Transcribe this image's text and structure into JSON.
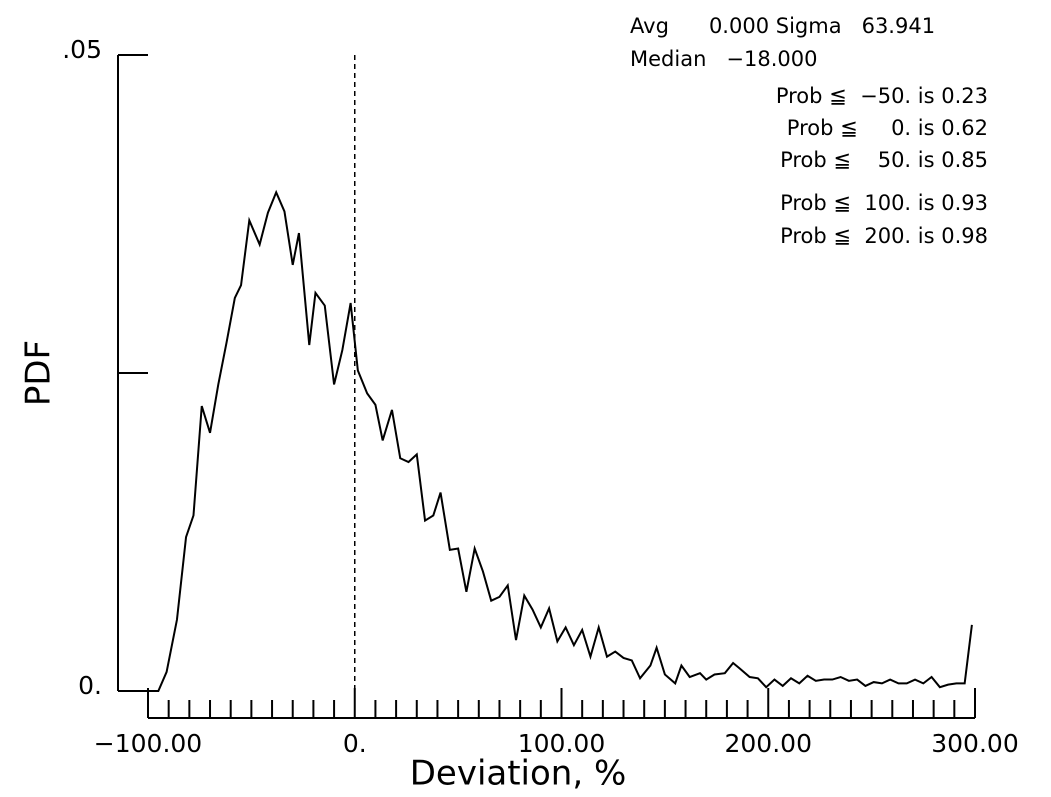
{
  "chart_data": {
    "type": "line",
    "ylabel": "PDF",
    "xlabel": "Deviation, %",
    "annotations": [
      "Avg      0.000 Sigma   63.941",
      "Median   −18.000",
      "Prob ≦  −50. is 0.23",
      "Prob ≦     0. is 0.62",
      "Prob ≦    50. is 0.85",
      "Prob ≦  100. is 0.93",
      "Prob ≦  200. is 0.98"
    ],
    "vline": 0,
    "xlim": [
      -100,
      300
    ],
    "ylim": [
      0,
      0.05
    ],
    "xticks": [
      {
        "value": -100,
        "label": "−100.00"
      },
      {
        "value": 0,
        "label": "0."
      },
      {
        "value": 100,
        "label": "100.00"
      },
      {
        "value": 200,
        "label": "200.00"
      },
      {
        "value": 300,
        "label": "300.00"
      }
    ],
    "xminorticks": [
      -90,
      -80,
      -70,
      -60,
      -50,
      -40,
      -30,
      -20,
      -10,
      10,
      20,
      30,
      40,
      50,
      60,
      70,
      80,
      90,
      110,
      120,
      130,
      140,
      150,
      160,
      170,
      180,
      190,
      210,
      220,
      230,
      240,
      250,
      260,
      270,
      280,
      290
    ],
    "yticks": [
      {
        "value": 0,
        "label": "0."
      },
      0.025,
      {
        "value": 0.05,
        "label": ".05"
      }
    ],
    "color": "#000000",
    "x": [
      -114.5,
      -95,
      -91,
      -86,
      -81.6,
      -78,
      -74,
      -70,
      -66,
      -62,
      -58,
      -55,
      -51,
      -46,
      -42,
      -38,
      -34,
      -30,
      -27,
      -22,
      -19,
      -14.5,
      -10,
      -6,
      -2,
      1.5,
      6,
      10,
      13.5,
      18,
      22,
      26,
      30,
      34,
      38,
      41.5,
      46,
      50,
      54,
      58,
      62,
      66,
      70,
      74,
      78,
      82,
      86,
      90,
      94,
      98,
      102,
      106,
      110,
      114,
      118,
      122,
      126,
      130,
      134,
      138,
      143,
      146,
      150,
      155,
      158,
      162,
      167,
      170,
      174,
      179,
      183,
      186,
      191,
      195,
      199,
      203,
      207,
      211,
      215,
      219,
      223,
      227,
      231,
      235,
      239,
      243,
      247,
      251,
      255,
      259,
      263,
      267,
      271,
      275,
      279,
      283,
      287,
      291,
      295,
      298.5
    ],
    "values": [
      0,
      0,
      0.0015,
      0.0056,
      0.0121,
      0.0138,
      0.0224,
      0.0203,
      0.0241,
      0.0274,
      0.0309,
      0.0319,
      0.037,
      0.0351,
      0.0376,
      0.0392,
      0.0377,
      0.0335,
      0.036,
      0.0272,
      0.0313,
      0.0303,
      0.0241,
      0.0268,
      0.0305,
      0.0252,
      0.0234,
      0.0225,
      0.0197,
      0.0221,
      0.0183,
      0.018,
      0.0186,
      0.0134,
      0.0138,
      0.0156,
      0.0111,
      0.0112,
      0.0078,
      0.0112,
      0.0094,
      0.0071,
      0.0074,
      0.0083,
      0.004,
      0.0075,
      0.0064,
      0.005,
      0.0065,
      0.0039,
      0.005,
      0.0036,
      0.0048,
      0.0027,
      0.005,
      0.0027,
      0.0031,
      0.0026,
      0.0024,
      0.001,
      0.002,
      0.0034,
      0.0013,
      0.0006,
      0.002,
      0.0011,
      0.0014,
      0.0009,
      0.0013,
      0.0014,
      0.0022,
      0.0018,
      0.0011,
      0.001,
      0.0003,
      0.0009,
      0.0004,
      0.001,
      0.0006,
      0.0012,
      0.0008,
      0.0009,
      0.0009,
      0.0011,
      0.0008,
      0.0009,
      0.0004,
      0.0007,
      0.0006,
      0.0009,
      0.0006,
      0.0006,
      0.0009,
      0.0006,
      0.0011,
      0.0003,
      0.0005,
      0.0006,
      0.0006,
      0.0052
    ]
  }
}
